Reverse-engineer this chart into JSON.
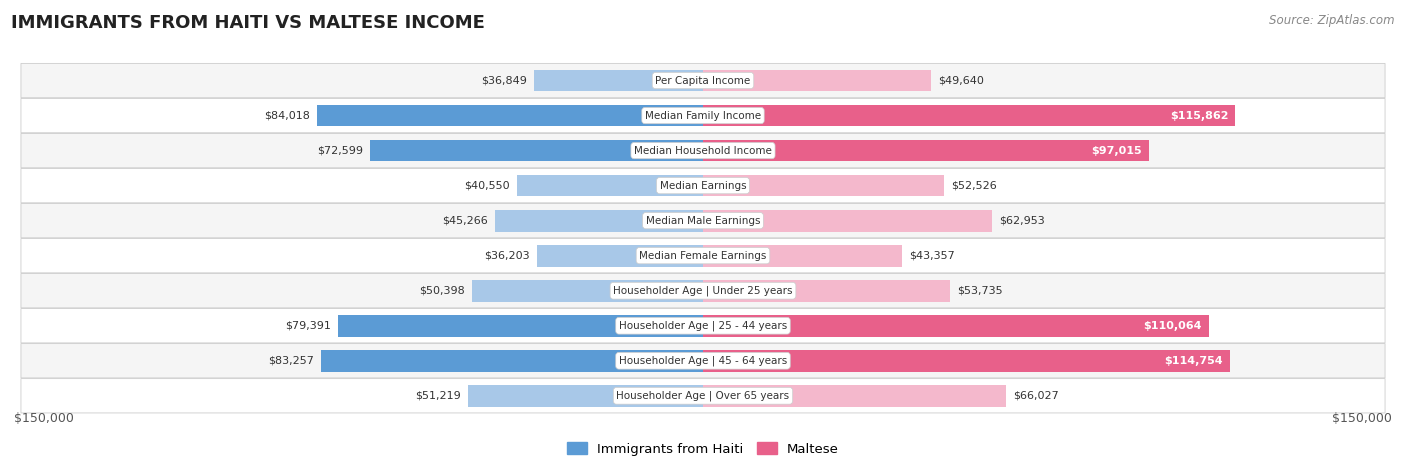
{
  "title": "IMMIGRANTS FROM HAITI VS MALTESE INCOME",
  "source": "Source: ZipAtlas.com",
  "categories": [
    "Per Capita Income",
    "Median Family Income",
    "Median Household Income",
    "Median Earnings",
    "Median Male Earnings",
    "Median Female Earnings",
    "Householder Age | Under 25 years",
    "Householder Age | 25 - 44 years",
    "Householder Age | 45 - 64 years",
    "Householder Age | Over 65 years"
  ],
  "haiti_values": [
    36849,
    84018,
    72599,
    40550,
    45266,
    36203,
    50398,
    79391,
    83257,
    51219
  ],
  "maltese_values": [
    49640,
    115862,
    97015,
    52526,
    62953,
    43357,
    53735,
    110064,
    114754,
    66027
  ],
  "haiti_labels": [
    "$36,849",
    "$84,018",
    "$72,599",
    "$40,550",
    "$45,266",
    "$36,203",
    "$50,398",
    "$79,391",
    "$83,257",
    "$51,219"
  ],
  "maltese_labels": [
    "$49,640",
    "$115,862",
    "$97,015",
    "$52,526",
    "$62,953",
    "$43,357",
    "$53,735",
    "$110,064",
    "$114,754",
    "$66,027"
  ],
  "haiti_color_light": "#a8c8e8",
  "haiti_color_dark": "#5b9bd5",
  "maltese_color_light": "#f4b8cc",
  "maltese_color_dark": "#e8608a",
  "max_val": 150000,
  "background_color": "#ffffff",
  "row_bg_even": "#f5f5f5",
  "row_bg_odd": "#ffffff",
  "legend_haiti": "Immigrants from Haiti",
  "legend_maltese": "Maltese",
  "haiti_dark_threshold": 60000,
  "maltese_dark_threshold": 80000
}
